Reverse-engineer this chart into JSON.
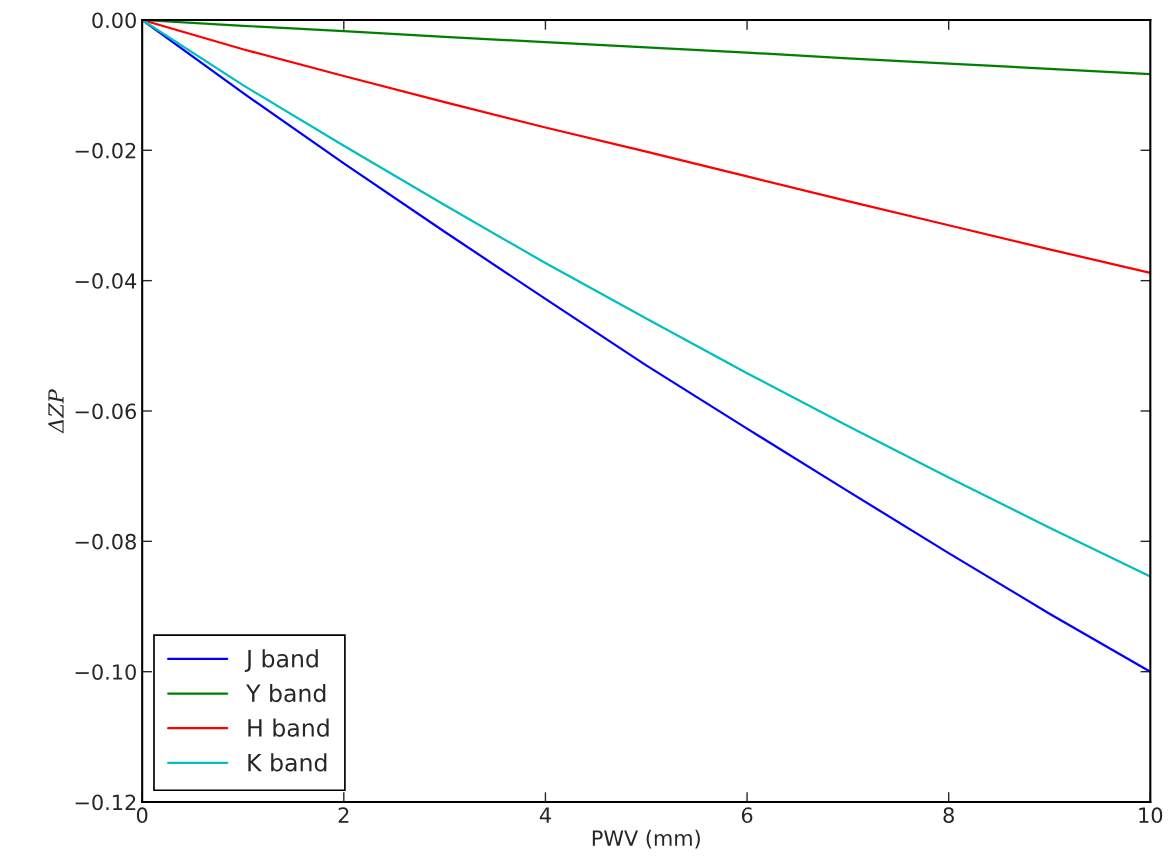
{
  "chart_data": {
    "type": "line",
    "xlabel": "PWV (mm)",
    "ylabel": "ΔZP",
    "x": [
      0,
      1,
      2,
      3,
      4,
      5,
      6,
      7,
      8,
      9,
      10
    ],
    "series": [
      {
        "name": "J band",
        "color": "#0000ff",
        "values": [
          0,
          -0.0112,
          -0.022,
          -0.0325,
          -0.0428,
          -0.053,
          -0.0627,
          -0.0723,
          -0.0818,
          -0.0911,
          -0.1
        ]
      },
      {
        "name": "Y band",
        "color": "#008000",
        "values": [
          0,
          -0.0009,
          -0.0017,
          -0.0026,
          -0.0034,
          -0.0042,
          -0.005,
          -0.0059,
          -0.0067,
          -0.0075,
          -0.0083
        ]
      },
      {
        "name": "H band",
        "color": "#ff0000",
        "values": [
          0,
          -0.0045,
          -0.0086,
          -0.0126,
          -0.0165,
          -0.0202,
          -0.024,
          -0.0278,
          -0.0315,
          -0.0352,
          -0.0388
        ]
      },
      {
        "name": "K band",
        "color": "#00bfbf",
        "values": [
          0,
          -0.01,
          -0.0193,
          -0.0284,
          -0.0373,
          -0.0458,
          -0.0542,
          -0.0623,
          -0.0702,
          -0.0779,
          -0.0854
        ]
      }
    ],
    "xlim": [
      0,
      10
    ],
    "xticks": [
      0,
      2,
      4,
      6,
      8,
      10
    ],
    "ylim": [
      -0.12,
      0
    ],
    "yticks": [
      {
        "value": -0.12,
        "label": "−0.12"
      },
      {
        "value": -0.1,
        "label": "−0.10"
      },
      {
        "value": -0.08,
        "label": "−0.08"
      },
      {
        "value": -0.06,
        "label": "−0.06"
      },
      {
        "value": -0.04,
        "label": "−0.04"
      },
      {
        "value": -0.02,
        "label": "−0.02"
      },
      {
        "value": 0,
        "label": "0.00"
      }
    ],
    "legend": "bottom left",
    "grid": false,
    "marker": "none",
    "line_style": "solid"
  }
}
